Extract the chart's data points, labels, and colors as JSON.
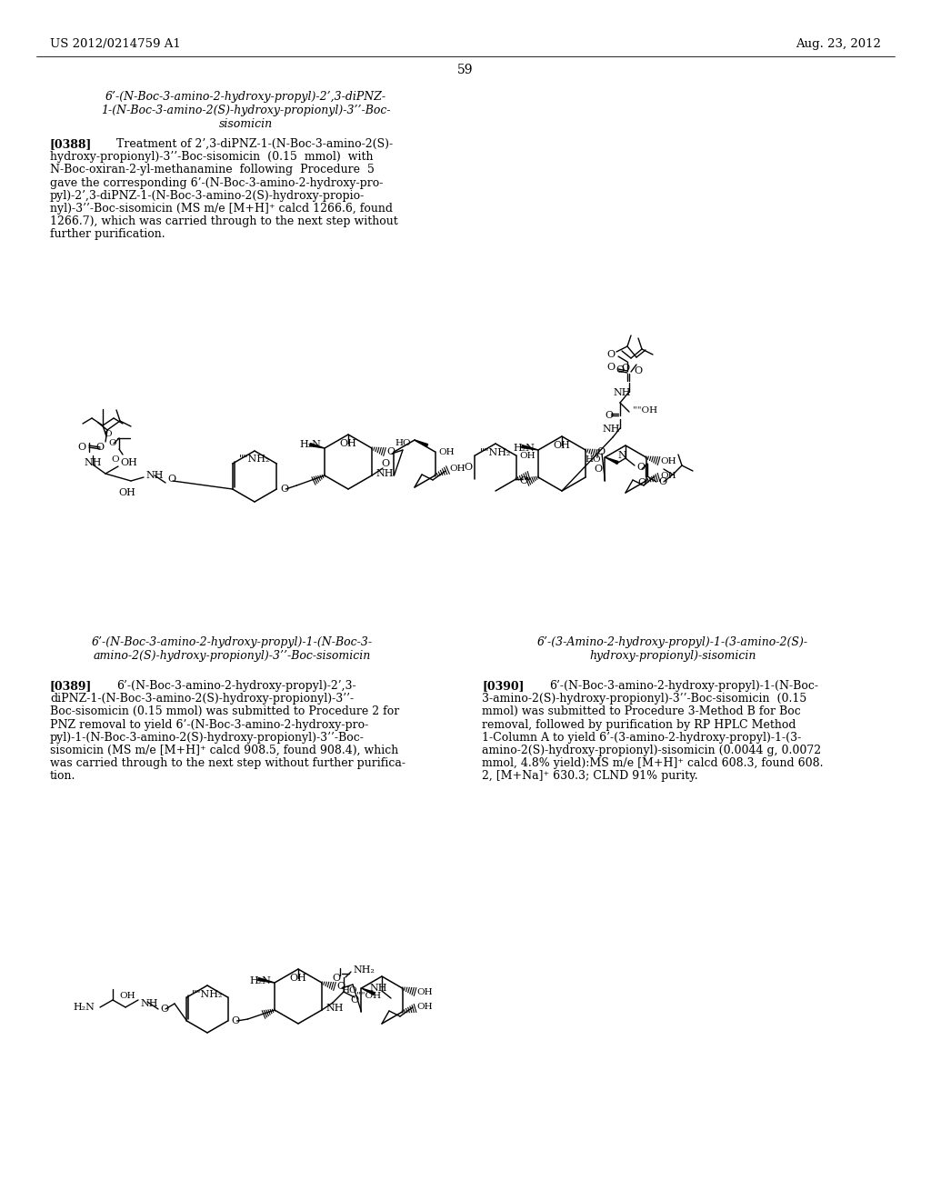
{
  "background_color": "#ffffff",
  "header_left": "US 2012/0214759 A1",
  "header_right": "Aug. 23, 2012",
  "page_number": "59",
  "title1_line1": "6’-(N-Boc-3-amino-2-hydroxy-propyl)-2’,3-diPNZ-",
  "title1_line2": "1-(N-Boc-3-amino-2(S)-hydroxy-propionyl)-3’’-Boc-",
  "title1_line3": "sisomicin",
  "para388_label": "[0388]",
  "para388_body": "Treatment of 2’,3-diPNZ-1-(N-Boc-3-amino-2(S)-hydroxy-propionyl)-3’’-Boc-sisomicin (0.15  mmol)  with N-Boc-oxiran-2-yl-methanamine  following  Procedure  5 gave the corresponding 6’-(N-Boc-3-amino-2-hydroxy-pro-pyl)-2’,3-diPNZ-1-(N-Boc-3-amino-2(S)-hydroxy-propio-nyl)-3’’-Boc-sisomicin (MS m/e [M+H]+ calcd 1266.6, found 1266.7), which was carried through to the next step without further purification.",
  "title2_left_line1": "6’-(N-Boc-3-amino-2-hydroxy-propyl)-1-(N-Boc-3-",
  "title2_left_line2": "amino-2(S)-hydroxy-propionyl)-3’’-Boc-sisomicin",
  "title2_right_line1": "6’-(3-Amino-2-hydroxy-propyl)-1-(3-amino-2(S)-",
  "title2_right_line2": "hydroxy-propionyl)-sisomicin",
  "para389_label": "[0389]",
  "para389_body": "6’-(N-Boc-3-amino-2-hydroxy-propyl)-2’,3-diPNZ-1-(N-Boc-3-amino-2(S)-hydroxy-propionyl)-3’’-Boc-sisomicin (0.15 mmol) was submitted to Procedure 2 for PNZ removal to yield 6’-(N-Boc-3-amino-2-hydroxy-pro-pyl)-1-(N-Boc-3-amino-2(S)-hydroxy-propionyl)-3’’-Boc-sisomicin (MS m/e [M+H]+ calcd 908.5, found 908.4), which was carried through to the next step without further purifica-tion.",
  "para390_label": "[0390]",
  "para390_body": "6’-(N-Boc-3-amino-2-hydroxy-propyl)-1-(N-Boc-3-amino-2(S)-hydroxy-propionyl)-3’’-Boc-sisomicin  (0.15 mmol) was submitted to Procedure 3-Method B for Boc removal, followed by purification by RP HPLC Method 1-Column A to yield 6’-(3-amino-2-hydroxy-propyl)-1-(3-amino-2(S)-hydroxy-propionyl)-sisomicin (0.0044 g, 0.0072 mmol, 4.8% yield):MS m/e [M+H]+ calcd 608.3, found 608.2, [M+Na]+ 630.3; CLND 91% purity.",
  "text_color": "#000000",
  "line_color": "#000000"
}
